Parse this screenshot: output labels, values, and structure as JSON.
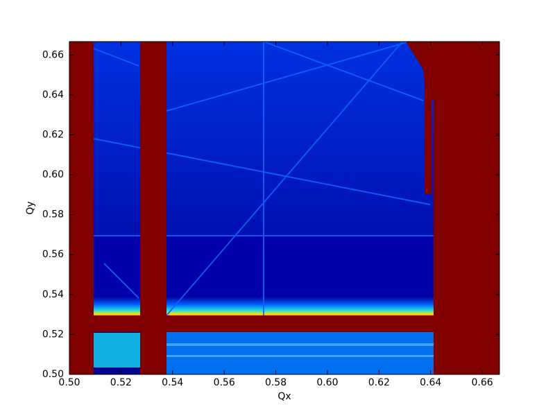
{
  "chart_data": {
    "type": "image",
    "xlabel": "Qx",
    "ylabel": "Qy",
    "xlim": [
      0.5,
      0.6667
    ],
    "ylim": [
      0.5,
      0.6667
    ],
    "xticks": [
      {
        "value": 0.5,
        "label": "0.50"
      },
      {
        "value": 0.52,
        "label": "0.52"
      },
      {
        "value": 0.54,
        "label": "0.54"
      },
      {
        "value": 0.56,
        "label": "0.56"
      },
      {
        "value": 0.58,
        "label": "0.58"
      },
      {
        "value": 0.6,
        "label": "0.60"
      },
      {
        "value": 0.62,
        "label": "0.62"
      },
      {
        "value": 0.64,
        "label": "0.64"
      },
      {
        "value": 0.66,
        "label": "0.66"
      }
    ],
    "yticks": [
      {
        "value": 0.5,
        "label": "0.50"
      },
      {
        "value": 0.52,
        "label": "0.52"
      },
      {
        "value": 0.54,
        "label": "0.54"
      },
      {
        "value": 0.56,
        "label": "0.56"
      },
      {
        "value": 0.58,
        "label": "0.58"
      },
      {
        "value": 0.6,
        "label": "0.60"
      },
      {
        "value": 0.62,
        "label": "0.62"
      },
      {
        "value": 0.64,
        "label": "0.64"
      },
      {
        "value": 0.66,
        "label": "0.66"
      }
    ]
  }
}
